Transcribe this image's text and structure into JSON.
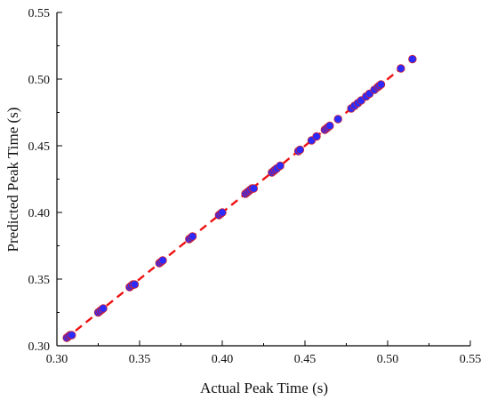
{
  "chart_data": {
    "type": "scatter",
    "title": "",
    "xlabel": "Actual Peak Time (s)",
    "ylabel": "Predicted Peak Time (s)",
    "xlim": [
      0.3,
      0.55
    ],
    "ylim": [
      0.3,
      0.55
    ],
    "xticks": [
      0.3,
      0.35,
      0.4,
      0.45,
      0.5,
      0.55
    ],
    "yticks": [
      0.3,
      0.35,
      0.4,
      0.45,
      0.5,
      0.55
    ],
    "xtick_labels": [
      "0.30",
      "0.35",
      "0.40",
      "0.45",
      "0.50",
      "0.55"
    ],
    "ytick_labels": [
      "0.30",
      "0.35",
      "0.40",
      "0.45",
      "0.50",
      "0.55"
    ],
    "grid": false,
    "legend": "none",
    "points": {
      "x": [
        0.306,
        0.307,
        0.308,
        0.309,
        0.325,
        0.326,
        0.327,
        0.328,
        0.344,
        0.345,
        0.346,
        0.347,
        0.362,
        0.363,
        0.364,
        0.38,
        0.381,
        0.382,
        0.398,
        0.399,
        0.4,
        0.414,
        0.415,
        0.416,
        0.417,
        0.418,
        0.419,
        0.43,
        0.431,
        0.432,
        0.433,
        0.435,
        0.446,
        0.447,
        0.454,
        0.457,
        0.462,
        0.463,
        0.464,
        0.465,
        0.47,
        0.478,
        0.48,
        0.482,
        0.484,
        0.487,
        0.489,
        0.492,
        0.494,
        0.495,
        0.496,
        0.508,
        0.515
      ],
      "y": [
        0.306,
        0.307,
        0.308,
        0.308,
        0.325,
        0.326,
        0.327,
        0.328,
        0.344,
        0.345,
        0.346,
        0.346,
        0.362,
        0.363,
        0.364,
        0.38,
        0.381,
        0.382,
        0.398,
        0.399,
        0.4,
        0.414,
        0.415,
        0.416,
        0.417,
        0.418,
        0.418,
        0.43,
        0.431,
        0.432,
        0.433,
        0.435,
        0.446,
        0.447,
        0.454,
        0.457,
        0.462,
        0.463,
        0.464,
        0.465,
        0.47,
        0.478,
        0.48,
        0.482,
        0.484,
        0.487,
        0.489,
        0.492,
        0.494,
        0.495,
        0.496,
        0.508,
        0.515
      ]
    },
    "fit_line": {
      "x": [
        0.305,
        0.512
      ],
      "y": [
        0.305,
        0.512
      ]
    },
    "colors": {
      "points_fill": "#2b2bff",
      "points_edge": "#cc2030",
      "fit_line": "#ee1111",
      "axis": "#000000"
    }
  }
}
